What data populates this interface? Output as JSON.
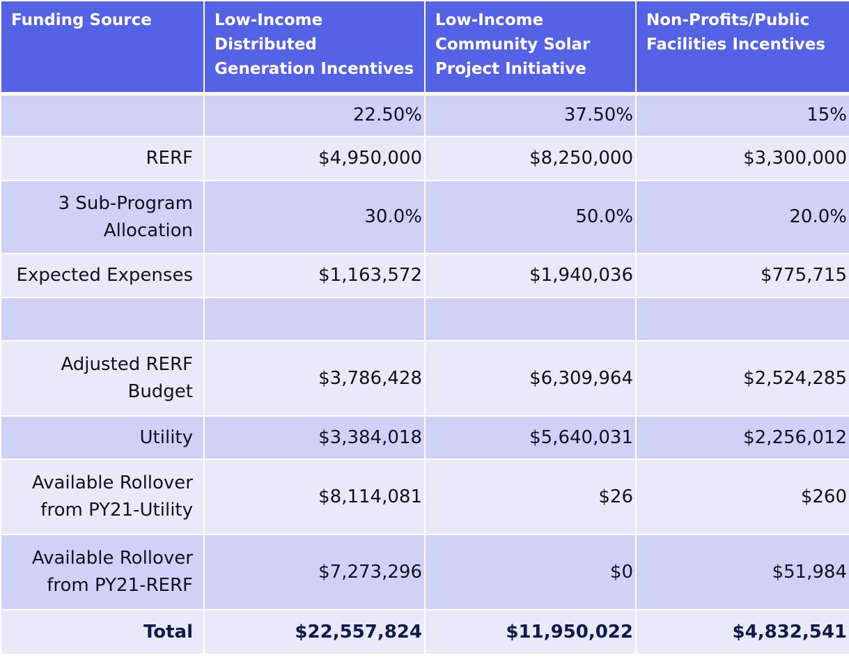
{
  "table": {
    "headers": [
      "Funding Source",
      "Low-Income Distributed Generation Incentives",
      "Low-Income Community Solar Project Initiative",
      "Non-Profits/Public Facilities Incentives"
    ],
    "rows": [
      {
        "label": "",
        "values": [
          "22.50%",
          "37.50%",
          "15%"
        ]
      },
      {
        "label": "RERF",
        "values": [
          "$4,950,000",
          "$8,250,000",
          "$3,300,000"
        ]
      },
      {
        "label": "3 Sub-Program Allocation",
        "values": [
          "30.0%",
          "50.0%",
          "20.0%"
        ]
      },
      {
        "label": "Expected Expenses",
        "values": [
          "$1,163,572",
          "$1,940,036",
          "$775,715"
        ]
      },
      {
        "label": "",
        "values": [
          "",
          "",
          ""
        ]
      },
      {
        "label": "Adjusted RERF Budget",
        "values": [
          "$3,786,428",
          "$6,309,964",
          "$2,524,285"
        ]
      },
      {
        "label": "Utility",
        "values": [
          "$3,384,018",
          "$5,640,031",
          "$2,256,012"
        ]
      },
      {
        "label": "Available Rollover from PY21-Utility",
        "values": [
          "$8,114,081",
          "$26",
          "$260"
        ]
      },
      {
        "label": "Available Rollover from PY21-RERF",
        "values": [
          "$7,273,296",
          "$0",
          "$51,984"
        ]
      },
      {
        "label": "Total",
        "values": [
          "$22,557,824",
          "$11,950,022",
          "$4,832,541"
        ]
      }
    ]
  },
  "colors": {
    "header_bg": "#5463e6",
    "row_dark": "#cfd2f5",
    "row_light": "#e8e9f9"
  }
}
